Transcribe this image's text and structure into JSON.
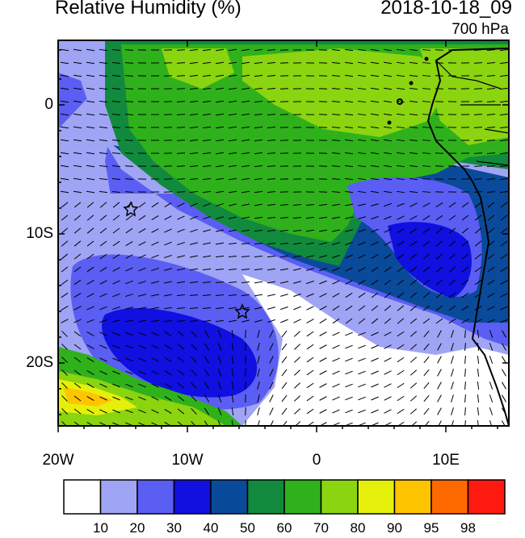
{
  "header": {
    "title": "Relative Humidity (%)",
    "datetime": "2018-10-18_09",
    "level": "700 hPa"
  },
  "axes": {
    "y_labels": [
      "0",
      "10S",
      "20S"
    ],
    "x_labels": [
      "20W",
      "10W",
      "0",
      "10E"
    ]
  },
  "colorbar": {
    "labels": [
      "10",
      "20",
      "30",
      "40",
      "50",
      "60",
      "70",
      "80",
      "90",
      "95",
      "98"
    ],
    "colors": [
      "#ffffff",
      "#a0a4f5",
      "#5a5ef2",
      "#1010e0",
      "#0a4a9a",
      "#118a3e",
      "#2fb11c",
      "#8ad410",
      "#e4f00a",
      "#ffc400",
      "#ff6a00",
      "#ff1a10"
    ]
  },
  "map_colors": {
    "white": "#ffffff",
    "light_blue": "#a0a4f5",
    "mid_blue": "#5a5ef2",
    "blue": "#1010e0",
    "dark_blue": "#0a4a9a",
    "dark_green": "#118a3e",
    "green": "#2fb11c",
    "yellow_green": "#8ad410",
    "yellow": "#e4f00a",
    "orange": "#ffc400",
    "red_orange": "#ff6a00"
  },
  "markers": [
    "star",
    "star"
  ]
}
